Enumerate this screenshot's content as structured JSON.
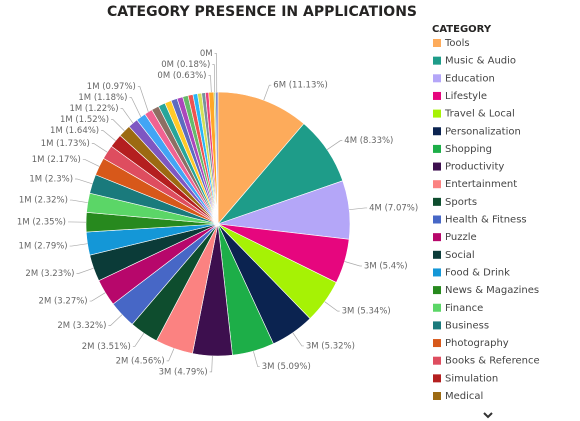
{
  "chart_data": {
    "type": "pie",
    "title": "CATEGORY PRESENCE IN APPLICATIONS",
    "legend_title": "CATEGORY",
    "legend": "right",
    "categories": [
      "Tools",
      "Music & Audio",
      "Education",
      "Lifestyle",
      "Travel & Local",
      "Personalization",
      "Shopping",
      "Productivity",
      "Entertainment",
      "Sports",
      "Health & Fitness",
      "Puzzle",
      "Social",
      "Food & Drink",
      "News & Magazines",
      "Finance",
      "Business",
      "Photography",
      "Books & Reference",
      "Simulation",
      "Medical",
      null,
      null,
      null,
      null,
      null,
      null,
      null,
      null,
      null,
      null,
      null,
      null,
      null,
      null,
      null,
      null,
      null
    ],
    "values": [
      11.13,
      8.33,
      7.07,
      5.4,
      5.34,
      5.32,
      5.09,
      4.79,
      4.56,
      3.51,
      3.32,
      3.27,
      3.23,
      2.79,
      2.35,
      2.32,
      2.3,
      2.17,
      1.73,
      1.64,
      1.52,
      1.22,
      1.18,
      0.97,
      0.9,
      0.85,
      0.8,
      0.75,
      0.7,
      0.65,
      0.6,
      0.55,
      0.5,
      0.45,
      0.4,
      0.63,
      0.18,
      0.3
    ],
    "value_labels": [
      "6M (11.13%)",
      "4M (8.33%)",
      "4M (7.07%)",
      "3M (5.4%)",
      "3M (5.34%)",
      "3M (5.32%)",
      "3M (5.09%)",
      "3M (4.79%)",
      "2M (4.56%)",
      "2M (3.51%)",
      "2M (3.32%)",
      "2M (3.27%)",
      "2M (3.23%)",
      "1M (2.79%)",
      "1M (2.35%)",
      "1M (2.32%)",
      "1M (2.3%)",
      "1M (2.17%)",
      "1M (1.73%)",
      "1M (1.64%)",
      "1M (1.52%)",
      "1M (1.22%)",
      "1M (1.18%)",
      "1M (0.97%)",
      null,
      null,
      null,
      null,
      null,
      null,
      null,
      null,
      null,
      null,
      null,
      "0M (0.63%)",
      "0M (0.18%)",
      "0M"
    ],
    "colors": [
      "#fdab5b",
      "#1e9c89",
      "#b4a6f8",
      "#e6067e",
      "#a6f205",
      "#0b2350",
      "#1dae48",
      "#3d0f4e",
      "#fb8281",
      "#0e4d2e",
      "#4767c6",
      "#b7076b",
      "#0b3b38",
      "#1497d7",
      "#27891e",
      "#5bd667",
      "#1a7a7c",
      "#d7581a",
      "#de4d5f",
      "#b41f1f",
      "#9c6a12",
      "#7e57c2",
      "#42a5f5",
      "#f06292",
      "#8d6e63",
      "#26a69a",
      "#ffca28",
      "#5c6bc0",
      "#ab47bc",
      "#66bb6a",
      "#ef5350",
      "#29b6f6",
      "#d4e157",
      "#78909c",
      "#ec407a",
      "#ffa726",
      "#9ccc65",
      "#7986cb"
    ]
  }
}
